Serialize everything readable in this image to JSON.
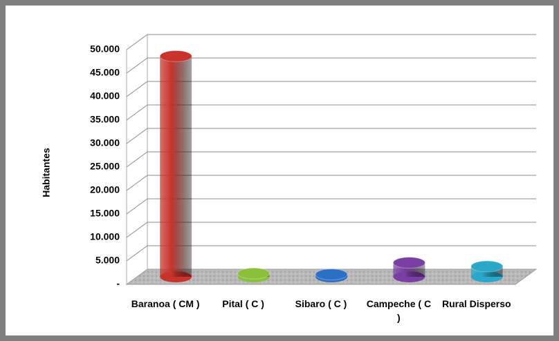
{
  "chart_data": {
    "type": "bar3d",
    "y_label": "Habitantes",
    "categories": [
      "Baranoa ( CM )",
      "Pital ( C )",
      "Sibaro ( C )",
      "Campeche ( C )",
      "Rural Disperso"
    ],
    "values": [
      47000,
      700,
      500,
      3000,
      2200
    ],
    "colors": [
      "#c8342c",
      "#8cc03c",
      "#2e6fc6",
      "#7a3fa2",
      "#2aa7c9"
    ],
    "ylim": [
      0,
      50000
    ],
    "yticks": [
      {
        "value": 0,
        "label": "-"
      },
      {
        "value": 5000,
        "label": "5.000"
      },
      {
        "value": 10000,
        "label": "10.000"
      },
      {
        "value": 15000,
        "label": "15.000"
      },
      {
        "value": 20000,
        "label": "20.000"
      },
      {
        "value": 25000,
        "label": "25.000"
      },
      {
        "value": 30000,
        "label": "30.000"
      },
      {
        "value": 35000,
        "label": "35.000"
      },
      {
        "value": 40000,
        "label": "40.000"
      },
      {
        "value": 45000,
        "label": "45.000"
      },
      {
        "value": 50000,
        "label": "50.000"
      }
    ],
    "grid": true
  }
}
